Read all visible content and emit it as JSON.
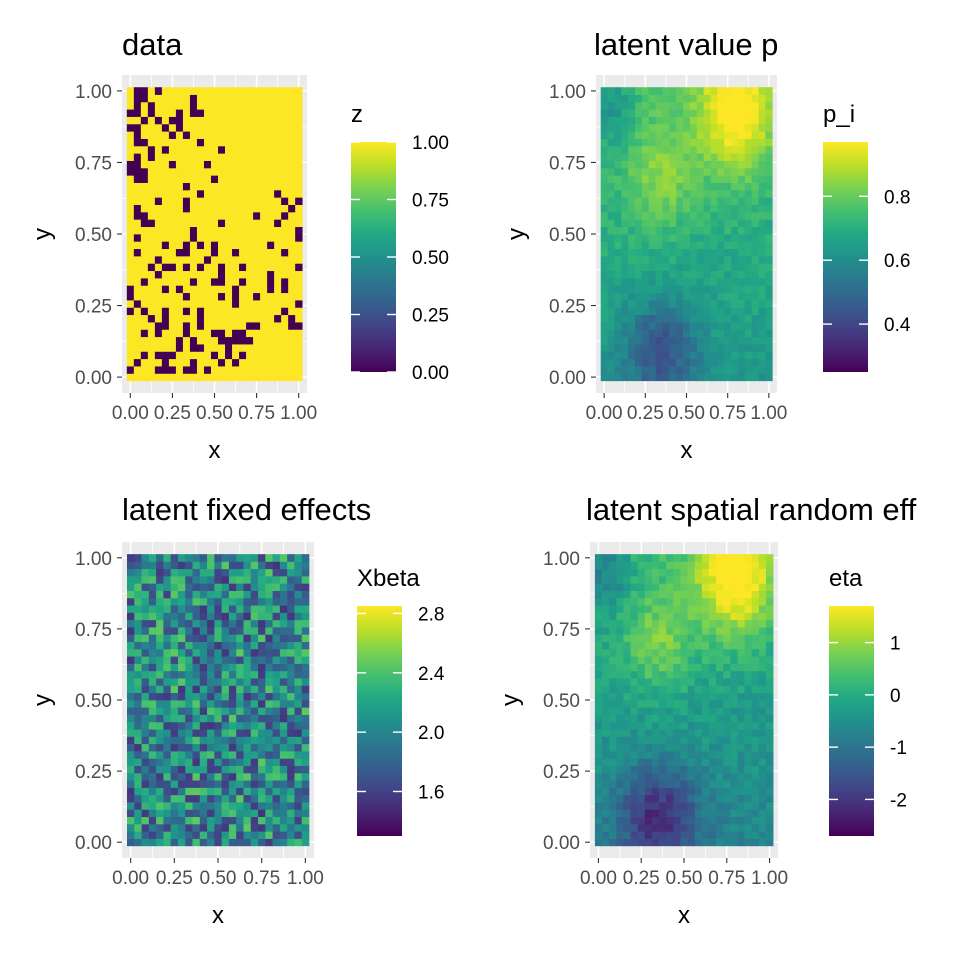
{
  "chart_data": [
    {
      "type": "heatmap",
      "title": "data",
      "xlabel": "x",
      "ylabel": "y",
      "xlim": [
        0,
        1
      ],
      "ylim": [
        0,
        1
      ],
      "x_ticks": [
        "0.00",
        "0.25",
        "0.50",
        "0.75",
        "1.00"
      ],
      "y_ticks": [
        "0.00",
        "0.25",
        "0.50",
        "0.75",
        "1.00"
      ],
      "grid": true,
      "colorscale": "viridis",
      "legend": {
        "title": "z",
        "placement": "right",
        "range": [
          0,
          1
        ],
        "ticks": [
          {
            "value": 0,
            "label": "0.00"
          },
          {
            "value": 0.25,
            "label": "0.25"
          },
          {
            "value": 0.5,
            "label": "0.50"
          },
          {
            "value": 0.75,
            "label": "0.75"
          },
          {
            "value": 1,
            "label": "1.00"
          }
        ]
      },
      "cols": 25,
      "rows": 40,
      "binary": true,
      "z_rows_top_to_bottom": [
        "1001011111111111111111111",
        "1001111110111111111111111",
        "1010111110111111111111111",
        "0010111010011111111111111",
        "1101010011111111111111111",
        "0011101011111111111111111",
        "1011110101111111111111111",
        "1001111111011111111111111",
        "1110101111111011111111111",
        "1010111111111111111111111",
        "0011110111101111111111111",
        "0001111111111111111111111",
        "1001111111110111111111111",
        "1111111101111111111111111",
        "1111111111011111111110111",
        "1111011101111111111111010",
        "1011111101111111111111101",
        "1001111111111111110111011",
        "1100111111111011111110111",
        "1111111110111111111111110",
        "1011111110111111111111110",
        "1111101101010111111101111",
        "1011111001110110111111011",
        "1111011111101111111111111",
        "1110100101011011011111110",
        "1111011111111011111101111",
        "1101111110110011011101011",
        "0111101011111110111101011",
        "0111111101111010110111111",
        "1011111111111110111111110",
        "0101101101011111111111011",
        "1110101111011111111110101",
        "1111001101011111100111100",
        "1101011101110010011111111",
        "1111111010111000001111111",
        "1111111010011101111111111",
        "1101000111110101011111111",
        "1011101110111010111111111",
        "0111000100101111111111111",
        "1111111111111111111111111"
      ]
    },
    {
      "type": "heatmap",
      "title": "latent value p",
      "xlabel": "x",
      "ylabel": "y",
      "xlim": [
        0,
        1
      ],
      "ylim": [
        0,
        1
      ],
      "x_ticks": [
        "0.00",
        "0.25",
        "0.50",
        "0.75",
        "1.00"
      ],
      "y_ticks": [
        "0.00",
        "0.25",
        "0.50",
        "0.75",
        "1.00"
      ],
      "grid": true,
      "colorscale": "viridis",
      "legend": {
        "title": "p_i",
        "placement": "right",
        "range": [
          0.25,
          0.97
        ],
        "ticks": [
          {
            "value": 0.4,
            "label": "0.4"
          },
          {
            "value": 0.6,
            "label": "0.6"
          },
          {
            "value": 0.8,
            "label": "0.8"
          }
        ]
      },
      "cols": 25,
      "rows": 40,
      "field_description": "smooth latent probability surface (approximate pattern)",
      "seed": 11,
      "field_kind": "p"
    },
    {
      "type": "heatmap",
      "title": "latent fixed effects",
      "xlabel": "x",
      "ylabel": "y",
      "xlim": [
        0,
        1
      ],
      "ylim": [
        0,
        1
      ],
      "x_ticks": [
        "0.00",
        "0.25",
        "0.50",
        "0.75",
        "1.00"
      ],
      "y_ticks": [
        "0.00",
        "0.25",
        "0.50",
        "0.75",
        "1.00"
      ],
      "grid": true,
      "colorscale": "viridis",
      "legend": {
        "title": "Xbeta",
        "placement": "right",
        "range": [
          1.3,
          2.85
        ],
        "ticks": [
          {
            "value": 1.6,
            "label": "1.6"
          },
          {
            "value": 2.0,
            "label": "2.0"
          },
          {
            "value": 2.4,
            "label": "2.4"
          },
          {
            "value": 2.8,
            "label": "2.8"
          }
        ]
      },
      "cols": 25,
      "rows": 40,
      "field_description": "spatially uncorrelated noise around ~2.0 (approximate pattern)",
      "seed": 23,
      "field_kind": "xbeta"
    },
    {
      "type": "heatmap",
      "title": "latent spatial random eff",
      "xlabel": "x",
      "ylabel": "y",
      "xlim": [
        0,
        1
      ],
      "ylim": [
        0,
        1
      ],
      "x_ticks": [
        "0.00",
        "0.25",
        "0.50",
        "0.75",
        "1.00"
      ],
      "y_ticks": [
        "0.00",
        "0.25",
        "0.50",
        "0.75",
        "1.00"
      ],
      "grid": true,
      "colorscale": "viridis",
      "legend": {
        "title": "eta",
        "placement": "right",
        "range": [
          -2.7,
          1.7
        ],
        "ticks": [
          {
            "value": -2,
            "label": "-2"
          },
          {
            "value": -1,
            "label": "-1"
          },
          {
            "value": 0,
            "label": "0"
          },
          {
            "value": 1,
            "label": "1"
          }
        ]
      },
      "cols": 25,
      "rows": 40,
      "field_description": "smooth spatial random effect (approximate pattern)",
      "seed": 37,
      "field_kind": "eta"
    }
  ],
  "colors": {
    "panel_bg": "#ebebeb",
    "grid_major": "#ffffff",
    "axis_text": "#4d4d4d",
    "title_text": "#000000"
  }
}
